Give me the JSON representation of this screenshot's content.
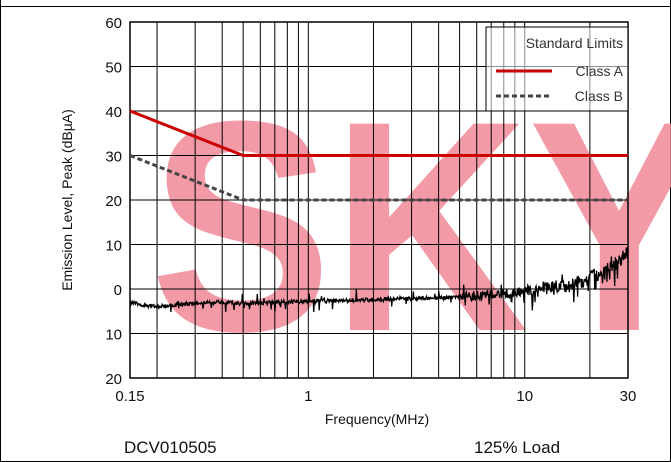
{
  "chart_data": {
    "type": "line",
    "xlabel": "Frequency(MHz)",
    "ylabel": "Emission Level, Peak (dBµA)",
    "x_scale": "log",
    "xlim": [
      0.15,
      30
    ],
    "x_tick_labels": [
      "0.15",
      "1",
      "10",
      "30"
    ],
    "x_tick_values": [
      0.15,
      1,
      10,
      30
    ],
    "y_tick_labels": [
      "60",
      "50",
      "40",
      "30",
      "20",
      "10",
      "0",
      "10",
      "20"
    ],
    "y_tick_values": [
      60,
      50,
      40,
      30,
      20,
      10,
      0,
      -10,
      -20
    ],
    "ylim": [
      -20,
      60
    ],
    "grid": true,
    "watermark": "SKY",
    "legend": {
      "title": "Standard Limits",
      "placement": "top-right",
      "entries": [
        "Class A",
        "Class B"
      ]
    },
    "series": [
      {
        "name": "Class A",
        "style": "solid",
        "color": "#cc0000",
        "x": [
          0.15,
          0.5,
          30
        ],
        "y": [
          40,
          30,
          30
        ]
      },
      {
        "name": "Class B",
        "style": "dashed",
        "color": "#444444",
        "x": [
          0.15,
          0.5,
          30
        ],
        "y": [
          30,
          20,
          20
        ]
      },
      {
        "style": "solid",
        "color": "#000000",
        "x": [
          0.15,
          0.17,
          0.2,
          0.25,
          0.3,
          0.4,
          0.5,
          0.7,
          1,
          1.5,
          2,
          3,
          4,
          5,
          6,
          8,
          10,
          12,
          15,
          18,
          20,
          22,
          25,
          28,
          30
        ],
        "y": [
          -3,
          -3.5,
          -4,
          -3.5,
          -3.2,
          -3,
          -3.3,
          -3,
          -2.8,
          -2.6,
          -2.4,
          -2.2,
          -2,
          -1.8,
          -1.5,
          -1,
          -0.5,
          0,
          0.5,
          1.5,
          2.5,
          3.5,
          5,
          6.5,
          8
        ]
      }
    ]
  },
  "captions": {
    "model": "DCV010505",
    "load": "125% Load"
  },
  "colors": {
    "watermark": "#f08a98",
    "class_a": "#cc0000",
    "class_b": "#444444",
    "trace": "#000000"
  }
}
